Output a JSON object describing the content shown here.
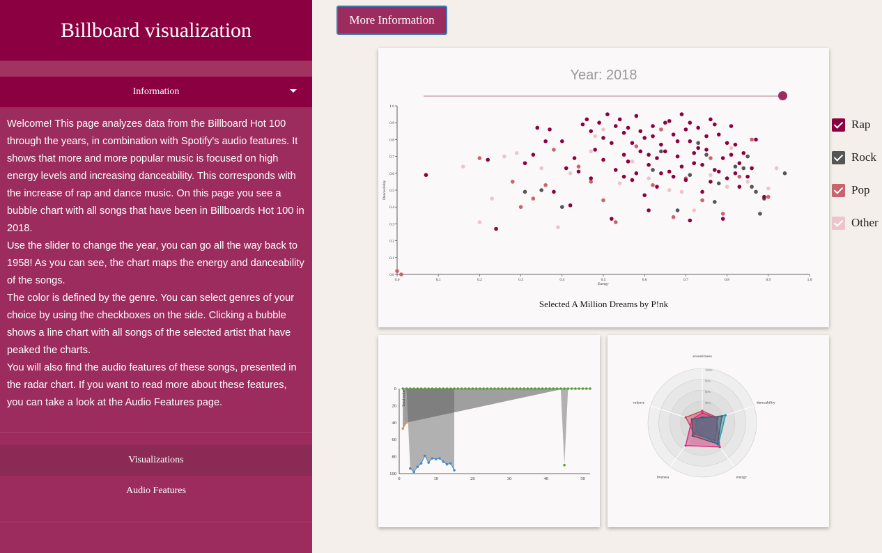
{
  "sidebar": {
    "title": "Billboard visualization",
    "info_header": "Information",
    "paragraphs": [
      "Welcome! This page analyzes data from the Billboard Hot 100 through the years, in combination with Spotify's audio features. It shows that more and more popular music is focused on high energy levels and increasing danceability. This corresponds with the increase of rap and dance music. On this page you see a bubble chart with all songs that have been in Billboards Hot 100 in 2018.",
      "Use the slider to change the year, you can go all the way back to 1958! As you can see, the chart maps the energy and danceability of the songs.",
      "The color is defined by the genre. You can select genres of your choice by using the checkboxes on the side. Clicking a bubble shows a line chart with all songs of the selected artist that have peaked the charts.",
      "You will also find the audio features of these songs, presented in the radar chart. If you want to read more about these features, you can take a look at the Audio Features page."
    ],
    "nav": [
      "Visualizations",
      "Audio Features"
    ]
  },
  "top_button": "More Information",
  "main_chart": {
    "year_label": "Year: 2018",
    "selected_label": "Selected A Million Dreams by P!nk"
  },
  "legend": [
    {
      "label": "Rap",
      "color": "#8b0040"
    },
    {
      "label": "Rock",
      "color": "#555555"
    },
    {
      "label": "Pop",
      "color": "#c8646c"
    },
    {
      "label": "Other",
      "color": "#ecc5cc"
    }
  ],
  "chart_data": [
    {
      "type": "scatter",
      "xlabel": "Energy",
      "ylabel": "Danceability",
      "xlim": [
        0,
        1
      ],
      "ylim": [
        0,
        1
      ],
      "x_ticks": [
        "0.0",
        "0.1",
        "0.2",
        "0.3",
        "0.4",
        "0.5",
        "0.6",
        "0.7",
        "0.8",
        "0.9",
        "1.0"
      ],
      "y_ticks": [
        "0.0",
        "0.1",
        "0.2",
        "0.3",
        "0.4",
        "0.5",
        "0.6",
        "0.7",
        "0.8",
        "0.9",
        "1.0"
      ],
      "series": [
        {
          "name": "Rap",
          "color": "#8b0040",
          "points": [
            [
              0.07,
              0.59
            ],
            [
              0.24,
              0.27
            ],
            [
              0.22,
              0.68
            ],
            [
              0.31,
              0.66
            ],
            [
              0.34,
              0.87
            ],
            [
              0.37,
              0.86
            ],
            [
              0.4,
              0.79
            ],
            [
              0.41,
              0.63
            ],
            [
              0.42,
              0.41
            ],
            [
              0.44,
              0.61
            ],
            [
              0.45,
              0.89
            ],
            [
              0.46,
              0.92
            ],
            [
              0.47,
              0.85
            ],
            [
              0.48,
              0.74
            ],
            [
              0.49,
              0.9
            ],
            [
              0.5,
              0.68
            ],
            [
              0.51,
              0.95
            ],
            [
              0.52,
              0.78
            ],
            [
              0.53,
              0.62
            ],
            [
              0.54,
              0.92
            ],
            [
              0.55,
              0.71
            ],
            [
              0.56,
              0.87
            ],
            [
              0.57,
              0.56
            ],
            [
              0.58,
              0.94
            ],
            [
              0.59,
              0.73
            ],
            [
              0.6,
              0.81
            ],
            [
              0.61,
              0.65
            ],
            [
              0.62,
              0.88
            ],
            [
              0.63,
              0.52
            ],
            [
              0.64,
              0.77
            ],
            [
              0.65,
              0.9
            ],
            [
              0.66,
              0.61
            ],
            [
              0.67,
              0.83
            ],
            [
              0.68,
              0.7
            ],
            [
              0.69,
              0.95
            ],
            [
              0.7,
              0.56
            ],
            [
              0.71,
              0.79
            ],
            [
              0.72,
              0.66
            ],
            [
              0.73,
              0.87
            ],
            [
              0.74,
              0.49
            ],
            [
              0.75,
              0.74
            ],
            [
              0.76,
              0.92
            ],
            [
              0.77,
              0.62
            ],
            [
              0.78,
              0.83
            ],
            [
              0.79,
              0.69
            ],
            [
              0.8,
              0.57
            ],
            [
              0.81,
              0.88
            ],
            [
              0.82,
              0.77
            ],
            [
              0.83,
              0.52
            ],
            [
              0.84,
              0.72
            ],
            [
              0.86,
              0.63
            ],
            [
              0.87,
              0.8
            ],
            [
              0.89,
              0.46
            ],
            [
              0.52,
              0.33
            ],
            [
              0.61,
              0.38
            ],
            [
              0.71,
              0.32
            ],
            [
              0.79,
              0.33
            ],
            [
              0.38,
              0.49
            ],
            [
              0.43,
              0.69
            ],
            [
              0.55,
              0.84
            ],
            [
              0.57,
              0.78
            ],
            [
              0.63,
              0.69
            ],
            [
              0.67,
              0.58
            ],
            [
              0.73,
              0.75
            ],
            [
              0.58,
              0.6
            ],
            [
              0.6,
              0.47
            ],
            [
              0.62,
              0.82
            ],
            [
              0.65,
              0.73
            ],
            [
              0.69,
              0.64
            ],
            [
              0.75,
              0.82
            ],
            [
              0.77,
              0.89
            ],
            [
              0.83,
              0.66
            ],
            [
              0.47,
              0.57
            ],
            [
              0.5,
              0.81
            ],
            [
              0.53,
              0.88
            ],
            [
              0.56,
              0.67
            ],
            [
              0.64,
              0.6
            ],
            [
              0.66,
              0.91
            ],
            [
              0.68,
              0.79
            ],
            [
              0.7,
              0.86
            ],
            [
              0.72,
              0.72
            ],
            [
              0.74,
              0.65
            ],
            [
              0.76,
              0.55
            ],
            [
              0.78,
              0.61
            ],
            [
              0.8,
              0.78
            ],
            [
              0.82,
              0.6
            ],
            [
              0.85,
              0.58
            ],
            [
              0.36,
              0.79
            ],
            [
              0.33,
              0.71
            ],
            [
              0.55,
              0.58
            ],
            [
              0.59,
              0.85
            ],
            [
              0.61,
              0.71
            ],
            [
              0.71,
              0.9
            ],
            [
              0.81,
              0.71
            ]
          ]
        },
        {
          "name": "Rock",
          "color": "#555555",
          "points": [
            [
              0.31,
              0.49
            ],
            [
              0.35,
              0.5
            ],
            [
              0.4,
              0.4
            ],
            [
              0.62,
              0.62
            ],
            [
              0.64,
              0.73
            ],
            [
              0.68,
              0.38
            ],
            [
              0.71,
              0.59
            ],
            [
              0.73,
              0.78
            ],
            [
              0.77,
              0.43
            ],
            [
              0.78,
              0.54
            ],
            [
              0.82,
              0.64
            ],
            [
              0.84,
              0.63
            ],
            [
              0.85,
              0.7
            ],
            [
              0.86,
              0.52
            ],
            [
              0.87,
              0.49
            ],
            [
              0.88,
              0.36
            ],
            [
              0.89,
              0.45
            ],
            [
              0.94,
              0.6
            ],
            [
              0.75,
              0.71
            ]
          ]
        },
        {
          "name": "Pop",
          "color": "#c8646c",
          "points": [
            [
              0.2,
              0.69
            ],
            [
              0.28,
              0.55
            ],
            [
              0.3,
              0.4
            ],
            [
              0.33,
              0.45
            ],
            [
              0.36,
              0.53
            ],
            [
              0.38,
              0.74
            ],
            [
              0.44,
              0.64
            ],
            [
              0.47,
              0.55
            ],
            [
              0.5,
              0.44
            ],
            [
              0.53,
              0.31
            ],
            [
              0.58,
              0.76
            ],
            [
              0.62,
              0.53
            ],
            [
              0.64,
              0.86
            ],
            [
              0.67,
              0.34
            ],
            [
              0.7,
              0.57
            ],
            [
              0.72,
              0.66
            ],
            [
              0.74,
              0.44
            ],
            [
              0.76,
              0.69
            ],
            [
              0.79,
              0.36
            ],
            [
              0.83,
              0.58
            ],
            [
              0.86,
              0.8
            ],
            [
              0.9,
              0.46
            ],
            [
              0.01,
              0.0
            ],
            [
              0.0,
              0.02
            ]
          ]
        },
        {
          "name": "Other",
          "color": "#ecc5cc",
          "points": [
            [
              0.16,
              0.64
            ],
            [
              0.2,
              0.31
            ],
            [
              0.23,
              0.45
            ],
            [
              0.26,
              0.7
            ],
            [
              0.29,
              0.72
            ],
            [
              0.35,
              0.63
            ],
            [
              0.39,
              0.28
            ],
            [
              0.42,
              0.6
            ],
            [
              0.47,
              0.73
            ],
            [
              0.5,
              0.86
            ],
            [
              0.54,
              0.54
            ],
            [
              0.57,
              0.67
            ],
            [
              0.61,
              0.57
            ],
            [
              0.66,
              0.5
            ],
            [
              0.69,
              0.49
            ],
            [
              0.72,
              0.38
            ],
            [
              0.76,
              0.59
            ],
            [
              0.8,
              0.52
            ],
            [
              0.85,
              0.55
            ],
            [
              0.9,
              0.51
            ],
            [
              0.92,
              0.63
            ],
            [
              0.81,
              0.75
            ],
            [
              0.48,
              0.82
            ]
          ]
        }
      ]
    },
    {
      "type": "line",
      "ylabel": "Total value",
      "xlim": [
        0,
        52
      ],
      "ylim": [
        100,
        0
      ],
      "x_ticks": [
        "0",
        "10",
        "20",
        "30",
        "40",
        "50"
      ],
      "y_ticks": [
        "0",
        "20",
        "40",
        "60",
        "80",
        "100"
      ],
      "series": [
        {
          "name": "",
          "color": "#5a9a3a",
          "values": [
            [
              1,
              0
            ],
            [
              2,
              0
            ],
            [
              3,
              0
            ],
            [
              4,
              0
            ],
            [
              5,
              0
            ],
            [
              6,
              0
            ],
            [
              7,
              0
            ],
            [
              8,
              0
            ],
            [
              9,
              0
            ],
            [
              10,
              0
            ],
            [
              11,
              0
            ],
            [
              12,
              0
            ],
            [
              13,
              0
            ],
            [
              14,
              0
            ],
            [
              15,
              0
            ],
            [
              16,
              0
            ],
            [
              17,
              0
            ],
            [
              18,
              0
            ],
            [
              19,
              0
            ],
            [
              20,
              0
            ],
            [
              21,
              0
            ],
            [
              22,
              0
            ],
            [
              23,
              0
            ],
            [
              24,
              0
            ],
            [
              25,
              0
            ],
            [
              26,
              0
            ],
            [
              27,
              0
            ],
            [
              28,
              0
            ],
            [
              29,
              0
            ],
            [
              30,
              0
            ],
            [
              31,
              0
            ],
            [
              32,
              0
            ],
            [
              33,
              0
            ],
            [
              34,
              0
            ],
            [
              35,
              0
            ],
            [
              36,
              0
            ],
            [
              37,
              0
            ],
            [
              38,
              0
            ],
            [
              39,
              0
            ],
            [
              40,
              0
            ],
            [
              41,
              0
            ],
            [
              42,
              0
            ],
            [
              43,
              0
            ],
            [
              44,
              0
            ],
            [
              45,
              0
            ],
            [
              46,
              0
            ],
            [
              47,
              0
            ],
            [
              48,
              0
            ],
            [
              49,
              0
            ],
            [
              50,
              0
            ],
            [
              51,
              0
            ],
            [
              52,
              0
            ]
          ]
        },
        {
          "name": "",
          "color": "#4a8ac8",
          "values": [
            [
              3,
              94
            ],
            [
              4,
              98
            ],
            [
              5,
              92
            ],
            [
              6,
              88
            ],
            [
              7,
              79
            ],
            [
              8,
              87
            ],
            [
              9,
              82
            ],
            [
              10,
              83
            ],
            [
              11,
              82
            ],
            [
              12,
              86
            ],
            [
              13,
              89
            ],
            [
              14,
              88
            ],
            [
              15,
              96
            ]
          ]
        },
        {
          "name": "",
          "color": "#e8944a",
          "values": [
            [
              1,
              47
            ],
            [
              2,
              40
            ]
          ]
        },
        {
          "name": "",
          "color": "#5a9a3a",
          "values": [
            [
              45,
              90
            ]
          ]
        }
      ]
    },
    {
      "type": "radar",
      "axes": [
        "acousticness",
        "danceability",
        "energy",
        "liveness",
        "valence"
      ],
      "ring_labels": [
        "100%",
        "80%",
        "60%",
        "40%"
      ],
      "series": [
        {
          "name": "",
          "color": "#c8405a",
          "values": [
            0.22,
            0.3,
            0.4,
            0.25,
            0.32
          ]
        },
        {
          "name": "",
          "color": "#d8287a",
          "values": [
            0.18,
            0.28,
            0.55,
            0.52,
            0.2
          ]
        },
        {
          "name": "",
          "color": "#1a9ab0",
          "values": [
            0.08,
            0.45,
            0.5,
            0.2,
            0.12
          ]
        },
        {
          "name": "",
          "color": "#555566",
          "values": [
            0.1,
            0.38,
            0.48,
            0.3,
            0.2
          ]
        }
      ]
    }
  ]
}
